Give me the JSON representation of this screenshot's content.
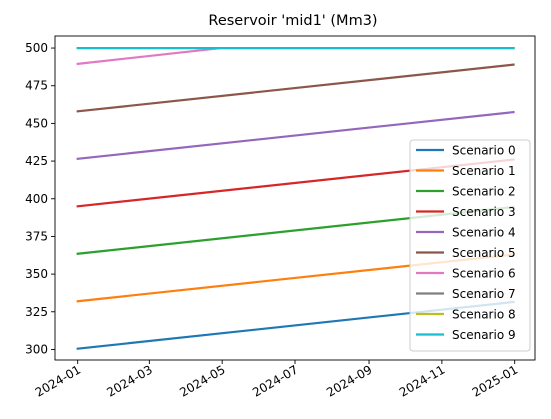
{
  "chart_data": {
    "type": "line",
    "title": "Reservoir 'mid1' (Mm3)",
    "xlabel": "",
    "ylabel": "",
    "x": [
      "2024-01-01",
      "2024-12-31"
    ],
    "xlim": [
      "2023-12-13",
      "2025-01-18"
    ],
    "ylim": [
      293,
      508
    ],
    "x_ticks": [
      "2024-01",
      "2024-03",
      "2024-05",
      "2024-07",
      "2024-09",
      "2024-11",
      "2025-01"
    ],
    "y_ticks": [
      300,
      325,
      350,
      375,
      400,
      425,
      450,
      475,
      500
    ],
    "grid": false,
    "legend_position": "center-right",
    "series": [
      {
        "name": "Scenario 0",
        "color": "#1f77b4",
        "points": [
          [
            "2024-01-01",
            300.5
          ],
          [
            "2024-12-31",
            331.5
          ]
        ]
      },
      {
        "name": "Scenario 1",
        "color": "#ff7f0e",
        "points": [
          [
            "2024-01-01",
            332.0
          ],
          [
            "2024-12-31",
            363.0
          ]
        ]
      },
      {
        "name": "Scenario 2",
        "color": "#2ca02c",
        "points": [
          [
            "2024-01-01",
            363.5
          ],
          [
            "2024-12-31",
            394.5
          ]
        ]
      },
      {
        "name": "Scenario 3",
        "color": "#d62728",
        "points": [
          [
            "2024-01-01",
            395.0
          ],
          [
            "2024-12-31",
            426.0
          ]
        ]
      },
      {
        "name": "Scenario 4",
        "color": "#9467bd",
        "points": [
          [
            "2024-01-01",
            426.5
          ],
          [
            "2024-12-31",
            457.5
          ]
        ]
      },
      {
        "name": "Scenario 5",
        "color": "#8c564b",
        "points": [
          [
            "2024-01-01",
            458.0
          ],
          [
            "2024-12-31",
            489.0
          ]
        ]
      },
      {
        "name": "Scenario 6",
        "color": "#e377c2",
        "points": [
          [
            "2024-01-01",
            489.5
          ],
          [
            "2024-04-30",
            500.0
          ],
          [
            "2024-12-31",
            500.0
          ]
        ]
      },
      {
        "name": "Scenario 7",
        "color": "#7f7f7f",
        "points": [
          [
            "2024-01-01",
            500.0
          ],
          [
            "2024-12-31",
            500.0
          ]
        ]
      },
      {
        "name": "Scenario 8",
        "color": "#bcbd22",
        "points": [
          [
            "2024-01-01",
            500.0
          ],
          [
            "2024-12-31",
            500.0
          ]
        ]
      },
      {
        "name": "Scenario 9",
        "color": "#17becf",
        "points": [
          [
            "2024-01-01",
            500.0
          ],
          [
            "2024-12-31",
            500.0
          ]
        ]
      }
    ]
  }
}
